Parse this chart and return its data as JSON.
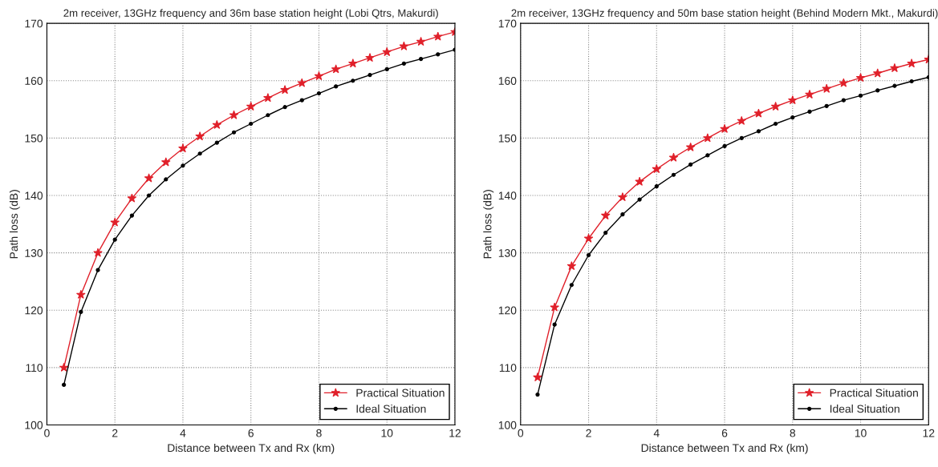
{
  "chart_data": [
    {
      "type": "line",
      "title": "2m receiver, 13GHz frequency and 36m base station height (Lobi Qtrs, Makurdi)",
      "xlabel": "Distance between Tx and Rx (km)",
      "ylabel": "Path loss (dB)",
      "x": [
        0.5,
        1,
        1.5,
        2,
        2.5,
        3,
        3.5,
        4,
        4.5,
        5,
        5.5,
        6,
        6.5,
        7,
        7.5,
        8,
        8.5,
        9,
        9.5,
        10,
        10.5,
        11,
        11.5,
        12
      ],
      "series": [
        {
          "name": "Practical Situation",
          "color": "#e0202a",
          "marker": "star",
          "values": [
            110,
            122.7,
            130,
            135.3,
            139.5,
            143,
            145.8,
            148.2,
            150.3,
            152.3,
            154,
            155.5,
            157,
            158.4,
            159.6,
            160.8,
            162,
            163,
            164,
            165,
            166,
            166.8,
            167.7,
            168.5
          ]
        },
        {
          "name": "Ideal Situation",
          "color": "#000000",
          "marker": "circle",
          "values": [
            107,
            119.7,
            127,
            132.3,
            136.5,
            140,
            142.8,
            145.2,
            147.3,
            149.2,
            151,
            152.5,
            154,
            155.4,
            156.6,
            157.8,
            159,
            160,
            161,
            162,
            163,
            163.8,
            164.6,
            165.4
          ]
        }
      ],
      "xlim": [
        0,
        12
      ],
      "xticks": [
        0,
        2,
        4,
        6,
        8,
        10,
        12
      ],
      "ylim": [
        100,
        170
      ],
      "yticks": [
        100,
        110,
        120,
        130,
        140,
        150,
        160,
        170
      ],
      "grid": true,
      "legend": "bottom right",
      "line_style": "solid"
    },
    {
      "type": "line",
      "title": "2m receiver, 13GHz frequency and 50m base station height (Behind Modern Mkt., Makurdi)",
      "xlabel": "Distance between Tx and Rx (km)",
      "ylabel": "Path loss (dB)",
      "x": [
        0.5,
        1,
        1.5,
        2,
        2.5,
        3,
        3.5,
        4,
        4.5,
        5,
        5.5,
        6,
        6.5,
        7,
        7.5,
        8,
        8.5,
        9,
        9.5,
        10,
        10.5,
        11,
        11.5,
        12
      ],
      "series": [
        {
          "name": "Practical Situation",
          "color": "#e0202a",
          "marker": "star",
          "values": [
            108.3,
            120.5,
            127.7,
            132.5,
            136.5,
            139.7,
            142.4,
            144.6,
            146.6,
            148.4,
            150,
            151.6,
            153,
            154.3,
            155.5,
            156.6,
            157.6,
            158.6,
            159.6,
            160.5,
            161.3,
            162.2,
            163,
            163.7
          ]
        },
        {
          "name": "Ideal Situation",
          "color": "#000000",
          "marker": "circle",
          "values": [
            105.3,
            117.5,
            124.4,
            129.6,
            133.5,
            136.7,
            139.3,
            141.6,
            143.6,
            145.4,
            147,
            148.6,
            150,
            151.2,
            152.5,
            153.6,
            154.6,
            155.6,
            156.6,
            157.4,
            158.3,
            159.1,
            159.9,
            160.6
          ]
        }
      ],
      "xlim": [
        0,
        12
      ],
      "xticks": [
        0,
        2,
        4,
        6,
        8,
        10,
        12
      ],
      "ylim": [
        100,
        170
      ],
      "yticks": [
        100,
        110,
        120,
        130,
        140,
        150,
        160,
        170
      ],
      "grid": true,
      "legend": "bottom right",
      "line_style": "solid"
    }
  ]
}
